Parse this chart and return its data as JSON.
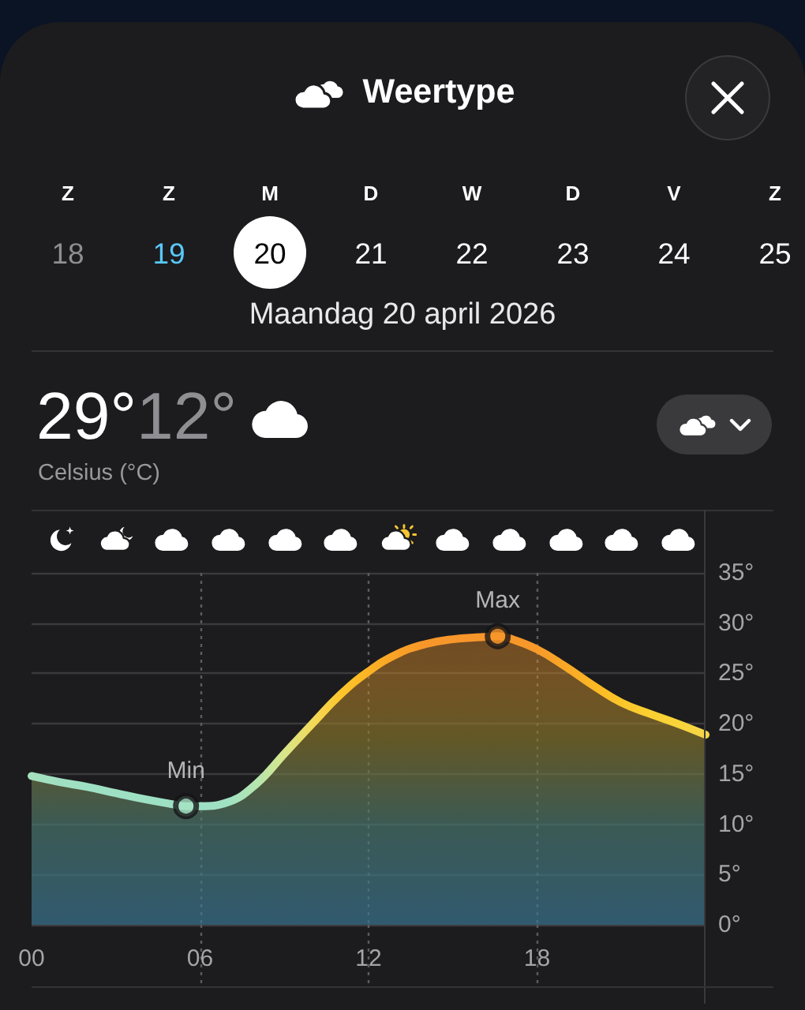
{
  "chart_data": {
    "type": "area",
    "title": "Weertype",
    "subtitle": "Maandag 20 april 2026",
    "annotations": [
      "Z",
      "Z",
      "M",
      "D",
      "W",
      "D",
      "V",
      "Z",
      "18",
      "19",
      "20",
      "21",
      "22",
      "23",
      "24",
      "25",
      "29°",
      "12°",
      "Celsius (°C)",
      {
        "text": "Min",
        "x": 5.5,
        "y": 11.8
      },
      {
        "text": "Max",
        "x": 16.6,
        "y": 28.7
      }
    ],
    "xlim": [
      0,
      24
    ],
    "xticks": [
      {
        "value": 0,
        "label": "00"
      },
      {
        "value": 6,
        "label": "06"
      },
      {
        "value": 12,
        "label": "12"
      },
      {
        "value": 18,
        "label": "18"
      }
    ],
    "ylim": [
      0,
      35
    ],
    "yticks": [
      {
        "value": 0,
        "label": "0°"
      },
      {
        "value": 5,
        "label": "5°"
      },
      {
        "value": 10,
        "label": "10°"
      },
      {
        "value": 15,
        "label": "15°"
      },
      {
        "value": 20,
        "label": "20°"
      },
      {
        "value": 25,
        "label": "25°"
      },
      {
        "value": 30,
        "label": "30°"
      },
      {
        "value": 35,
        "label": "35°"
      }
    ],
    "grid": true,
    "marker": "none",
    "series": [
      {
        "x": [
          0,
          1,
          2,
          3,
          4,
          5,
          5.5,
          6,
          7,
          8,
          9,
          10,
          11,
          12,
          13,
          14,
          15,
          16,
          16.6,
          17,
          18,
          19,
          20,
          21,
          22,
          23,
          24
        ],
        "values": [
          14.8,
          14.2,
          13.7,
          13.1,
          12.5,
          12,
          11.8,
          11.8,
          12.2,
          14,
          17,
          20,
          22.9,
          25.2,
          26.9,
          27.9,
          28.4,
          28.6,
          28.7,
          28.5,
          27.4,
          25.7,
          23.8,
          22.1,
          21,
          20,
          18.9
        ],
        "colors": [
          "#a5e0bc",
          "#a0e0c2",
          "#9ee0c4",
          "#9ee0c4",
          "#9ee0c4",
          "#9ee0c4",
          "#9ee0c4",
          "#9ee0c4",
          "#a0e1c2",
          "#b4e6b0",
          "#d8e68a",
          "#f2d95a",
          "#fcc62c",
          "#fbb324",
          "#f9a226",
          "#f7962a",
          "#f7962a",
          "#f7962a",
          "#f7962a",
          "#f7962a",
          "#f79a2a",
          "#f9a826",
          "#fbb824",
          "#fcc62a",
          "#fbd030",
          "#f8d43a",
          "#f5d648"
        ]
      },
      {
        "type": "scatter",
        "marker": "circle",
        "x": [
          5.5,
          16.6
        ],
        "values": [
          11.8,
          28.7
        ],
        "colors": [
          "#a6e3c6",
          "#f7962a"
        ]
      }
    ]
  }
}
